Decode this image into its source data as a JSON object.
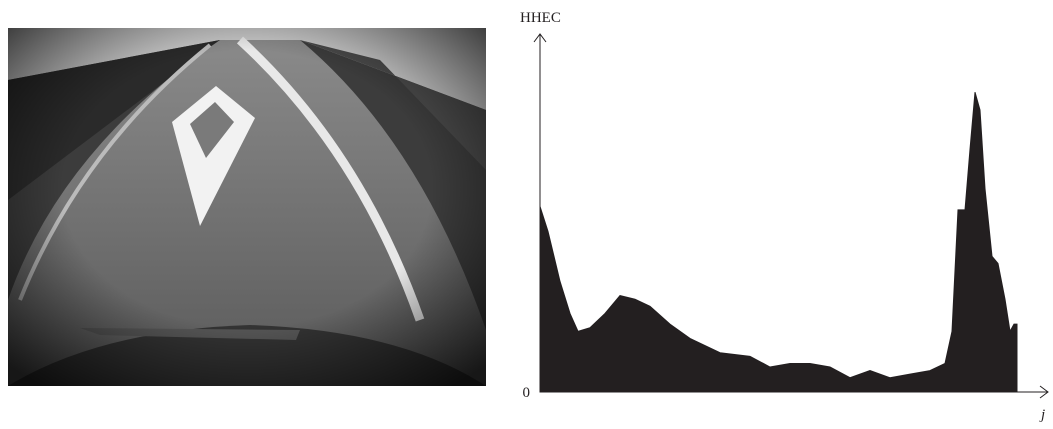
{
  "chart_data": {
    "type": "area",
    "y_label": "HHEC",
    "x_label": "j",
    "x": [
      0,
      8,
      20,
      30,
      38,
      50,
      65,
      80,
      95,
      110,
      130,
      150,
      180,
      210,
      230,
      250,
      270,
      290,
      310,
      330,
      350,
      370,
      390,
      405,
      412,
      418,
      425,
      430,
      435,
      440,
      445,
      452,
      458,
      465,
      470,
      474,
      477
    ],
    "values": [
      52,
      45,
      31,
      22,
      17,
      18,
      22,
      27,
      26,
      24,
      19,
      15,
      11,
      10,
      7,
      8,
      8,
      7,
      4,
      6,
      4,
      5,
      6,
      8,
      17,
      51,
      51,
      68,
      84,
      79,
      57,
      38,
      36,
      26,
      17,
      19,
      19
    ],
    "color": "#231f20",
    "xlim": [
      0,
      505
    ],
    "ylim": [
      0,
      100
    ],
    "yticks": [
      0
    ]
  }
}
